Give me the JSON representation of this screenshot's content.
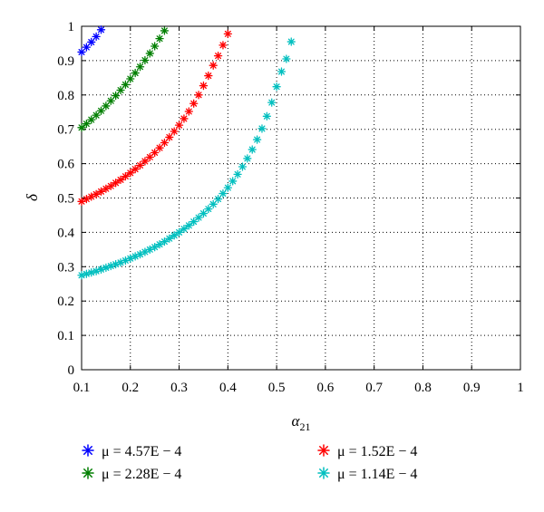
{
  "chart_data": {
    "type": "scatter",
    "xlabel": "α",
    "xlabel_sub": "21",
    "ylabel": "δ",
    "xlim": [
      0.1,
      1
    ],
    "ylim": [
      0,
      1
    ],
    "x_ticks": [
      "0.1",
      "0.2",
      "0.3",
      "0.4",
      "0.5",
      "0.6",
      "0.7",
      "0.8",
      "0.9",
      "1"
    ],
    "y_ticks": [
      "0",
      "0.1",
      "0.2",
      "0.3",
      "0.4",
      "0.5",
      "0.6",
      "0.7",
      "0.8",
      "0.9",
      "1"
    ],
    "grid": true,
    "grid_style": "dotted",
    "marker": "asterisk",
    "legend_position": "bottom",
    "series": [
      {
        "name": "μ = 4.57E − 4",
        "color": "#0000ff",
        "x": [
          0.1,
          0.11,
          0.12,
          0.13,
          0.14
        ],
        "y": [
          0.925,
          0.939,
          0.954,
          0.97,
          0.99
        ]
      },
      {
        "name": "μ = 2.28E − 4",
        "color": "#007f00",
        "x": [
          0.1,
          0.11,
          0.12,
          0.13,
          0.14,
          0.15,
          0.16,
          0.17,
          0.18,
          0.19,
          0.2,
          0.21,
          0.22,
          0.23,
          0.24,
          0.25,
          0.26,
          0.27
        ],
        "y": [
          0.705,
          0.716,
          0.728,
          0.741,
          0.754,
          0.768,
          0.783,
          0.798,
          0.814,
          0.83,
          0.847,
          0.864,
          0.882,
          0.901,
          0.921,
          0.942,
          0.964,
          0.987
        ]
      },
      {
        "name": "μ = 1.52E − 4",
        "color": "#ff0000",
        "x": [
          0.1,
          0.11,
          0.12,
          0.13,
          0.14,
          0.15,
          0.16,
          0.17,
          0.18,
          0.19,
          0.2,
          0.21,
          0.22,
          0.23,
          0.24,
          0.25,
          0.26,
          0.27,
          0.28,
          0.29,
          0.3,
          0.31,
          0.32,
          0.33,
          0.34,
          0.35,
          0.36,
          0.37,
          0.38,
          0.39,
          0.4
        ],
        "y": [
          0.49,
          0.497,
          0.504,
          0.511,
          0.519,
          0.527,
          0.535,
          0.544,
          0.553,
          0.563,
          0.573,
          0.584,
          0.595,
          0.607,
          0.619,
          0.632,
          0.646,
          0.661,
          0.677,
          0.694,
          0.712,
          0.731,
          0.752,
          0.775,
          0.8,
          0.827,
          0.856,
          0.886,
          0.914,
          0.945,
          0.978
        ]
      },
      {
        "name": "μ = 1.14E − 4",
        "color": "#00bfbf",
        "x": [
          0.1,
          0.11,
          0.12,
          0.13,
          0.14,
          0.15,
          0.16,
          0.17,
          0.18,
          0.19,
          0.2,
          0.21,
          0.22,
          0.23,
          0.24,
          0.25,
          0.26,
          0.27,
          0.28,
          0.29,
          0.3,
          0.31,
          0.32,
          0.33,
          0.34,
          0.35,
          0.36,
          0.37,
          0.38,
          0.39,
          0.4,
          0.41,
          0.42,
          0.43,
          0.44,
          0.45,
          0.46,
          0.47,
          0.48,
          0.49,
          0.5,
          0.51,
          0.52,
          0.53
        ],
        "y": [
          0.275,
          0.279,
          0.283,
          0.287,
          0.292,
          0.297,
          0.302,
          0.307,
          0.312,
          0.318,
          0.324,
          0.33,
          0.336,
          0.343,
          0.35,
          0.357,
          0.365,
          0.373,
          0.382,
          0.391,
          0.4,
          0.41,
          0.42,
          0.431,
          0.443,
          0.455,
          0.468,
          0.482,
          0.497,
          0.513,
          0.53,
          0.549,
          0.569,
          0.591,
          0.615,
          0.641,
          0.67,
          0.702,
          0.738,
          0.778,
          0.824,
          0.868,
          0.905,
          0.955
        ]
      }
    ]
  }
}
